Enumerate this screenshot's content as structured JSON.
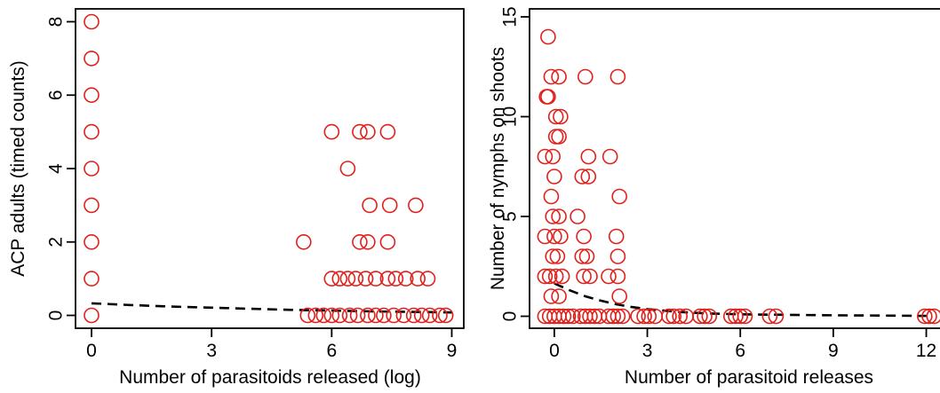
{
  "colors": {
    "points": "#e0201b",
    "axis": "#000000",
    "fit_line": "#000000"
  },
  "chart_data": [
    {
      "type": "scatter",
      "title": "",
      "xlabel": "Number of parasitoids released (log)",
      "ylabel": "ACP adults (timed counts)",
      "xlim": [
        -0.4,
        9.3
      ],
      "ylim": [
        -0.35,
        8.35
      ],
      "xticks": [
        0,
        3,
        6,
        9
      ],
      "yticks": [
        0,
        2,
        4,
        6,
        8
      ],
      "xtick_labels": [
        "0",
        "3",
        "6",
        "9"
      ],
      "ytick_labels": [
        "0",
        "2",
        "4",
        "6",
        "8"
      ],
      "grid": false,
      "marker": "open-circle",
      "points": [
        [
          0,
          0
        ],
        [
          0,
          1
        ],
        [
          0,
          2
        ],
        [
          0,
          3
        ],
        [
          0,
          4
        ],
        [
          0,
          5
        ],
        [
          0,
          6
        ],
        [
          0,
          7
        ],
        [
          0,
          8
        ],
        [
          5.3,
          2
        ],
        [
          6.0,
          5
        ],
        [
          6.4,
          4
        ],
        [
          6.7,
          5
        ],
        [
          6.9,
          5
        ],
        [
          7.4,
          5
        ],
        [
          6.7,
          2
        ],
        [
          6.9,
          2
        ],
        [
          7.4,
          2
        ],
        [
          6.95,
          3
        ],
        [
          7.45,
          3
        ],
        [
          8.1,
          3
        ],
        [
          6.0,
          1
        ],
        [
          6.2,
          1
        ],
        [
          6.4,
          1
        ],
        [
          6.6,
          1
        ],
        [
          6.85,
          1
        ],
        [
          7.1,
          1
        ],
        [
          7.4,
          1
        ],
        [
          7.6,
          1
        ],
        [
          7.85,
          1
        ],
        [
          8.15,
          1
        ],
        [
          8.4,
          1
        ],
        [
          5.4,
          0
        ],
        [
          5.6,
          0
        ],
        [
          5.8,
          0
        ],
        [
          6.0,
          0
        ],
        [
          6.2,
          0
        ],
        [
          6.45,
          0
        ],
        [
          6.65,
          0
        ],
        [
          6.9,
          0
        ],
        [
          7.1,
          0
        ],
        [
          7.3,
          0
        ],
        [
          7.55,
          0
        ],
        [
          7.8,
          0
        ],
        [
          8.05,
          0
        ],
        [
          8.25,
          0
        ],
        [
          8.45,
          0
        ],
        [
          8.7,
          0
        ],
        [
          8.85,
          0
        ]
      ],
      "fit_curve": {
        "x": [
          0,
          1,
          2,
          3,
          4,
          5,
          6,
          7,
          8,
          9
        ],
        "y": [
          0.33,
          0.28,
          0.24,
          0.21,
          0.18,
          0.15,
          0.13,
          0.11,
          0.095,
          0.08
        ]
      }
    },
    {
      "type": "scatter",
      "title": "",
      "xlabel": "Number of parasitoid releases",
      "ylabel": "Number of nymphs on shoots",
      "xlim": [
        -0.8,
        12.5
      ],
      "ylim": [
        -0.6,
        15.4
      ],
      "xticks": [
        0,
        3,
        6,
        9,
        12
      ],
      "yticks": [
        0,
        5,
        10,
        15
      ],
      "xtick_labels": [
        "0",
        "3",
        "6",
        "9",
        "12"
      ],
      "ytick_labels": [
        "0",
        "5",
        "10",
        "15"
      ],
      "grid": false,
      "marker": "open-circle",
      "points": [
        [
          -0.2,
          14
        ],
        [
          -0.25,
          11
        ],
        [
          -0.2,
          11
        ],
        [
          -0.1,
          12
        ],
        [
          0.15,
          12
        ],
        [
          1.0,
          12
        ],
        [
          2.05,
          12
        ],
        [
          0.05,
          10
        ],
        [
          0.2,
          10
        ],
        [
          0.05,
          9
        ],
        [
          0.15,
          9
        ],
        [
          -0.3,
          8
        ],
        [
          -0.05,
          8
        ],
        [
          1.1,
          8
        ],
        [
          1.8,
          8
        ],
        [
          0.0,
          7
        ],
        [
          0.9,
          7
        ],
        [
          1.1,
          7
        ],
        [
          -0.1,
          6
        ],
        [
          2.1,
          6
        ],
        [
          -0.05,
          5
        ],
        [
          0.15,
          5
        ],
        [
          0.75,
          5
        ],
        [
          -0.3,
          4
        ],
        [
          0.0,
          4
        ],
        [
          0.2,
          4
        ],
        [
          0.95,
          4
        ],
        [
          2.0,
          4
        ],
        [
          -0.05,
          3
        ],
        [
          0.1,
          3
        ],
        [
          0.9,
          3
        ],
        [
          1.05,
          3
        ],
        [
          2.05,
          3
        ],
        [
          -0.3,
          2
        ],
        [
          -0.15,
          2
        ],
        [
          0.05,
          2
        ],
        [
          0.25,
          2
        ],
        [
          0.95,
          2
        ],
        [
          1.15,
          2
        ],
        [
          1.75,
          2
        ],
        [
          2.05,
          2
        ],
        [
          -0.1,
          1
        ],
        [
          0.15,
          1
        ],
        [
          2.1,
          1
        ],
        [
          -0.3,
          0
        ],
        [
          -0.15,
          0
        ],
        [
          0.0,
          0
        ],
        [
          0.15,
          0
        ],
        [
          0.3,
          0
        ],
        [
          0.45,
          0
        ],
        [
          0.6,
          0
        ],
        [
          0.85,
          0
        ],
        [
          1.0,
          0
        ],
        [
          1.15,
          0
        ],
        [
          1.3,
          0
        ],
        [
          1.45,
          0
        ],
        [
          1.75,
          0
        ],
        [
          1.9,
          0
        ],
        [
          2.05,
          0
        ],
        [
          2.2,
          0
        ],
        [
          2.7,
          0
        ],
        [
          2.9,
          0
        ],
        [
          3.05,
          0
        ],
        [
          3.25,
          0
        ],
        [
          3.7,
          0
        ],
        [
          3.85,
          0
        ],
        [
          4.05,
          0
        ],
        [
          4.25,
          0
        ],
        [
          4.7,
          0
        ],
        [
          4.85,
          0
        ],
        [
          5.0,
          0
        ],
        [
          5.7,
          0
        ],
        [
          5.85,
          0
        ],
        [
          6.0,
          0
        ],
        [
          6.15,
          0
        ],
        [
          6.95,
          0
        ],
        [
          7.15,
          0
        ],
        [
          11.95,
          0
        ],
        [
          12.1,
          0
        ],
        [
          12.25,
          0
        ]
      ],
      "fit_curve": {
        "x": [
          0,
          0.5,
          1,
          1.5,
          2,
          2.5,
          3,
          4,
          5,
          6,
          7,
          8,
          9,
          10,
          11,
          12
        ],
        "y": [
          1.65,
          1.3,
          1.0,
          0.78,
          0.6,
          0.46,
          0.36,
          0.22,
          0.14,
          0.1,
          0.08,
          0.06,
          0.05,
          0.04,
          0.03,
          0.02
        ]
      }
    }
  ]
}
